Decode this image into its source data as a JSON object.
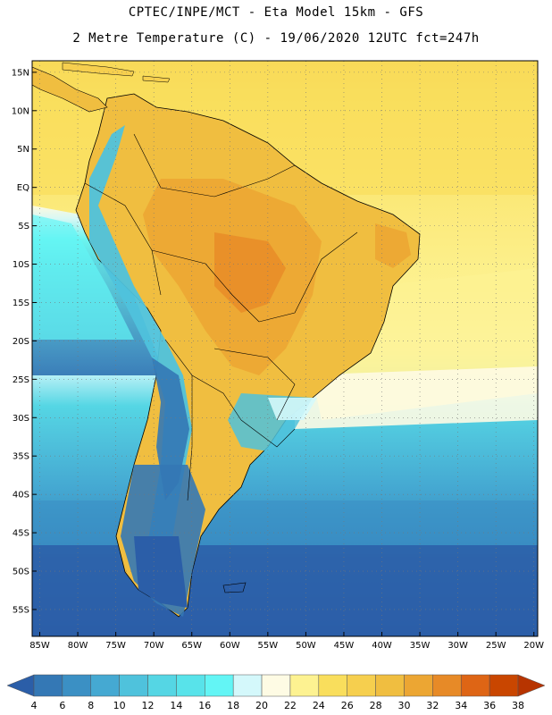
{
  "header": {
    "line1": "CPTEC/INPE/MCT -  Eta Model 15km - GFS",
    "line2": "2 Metre Temperature (C) - 19/06/2020 12UTC fct=247h"
  },
  "map": {
    "lon_range": [
      -86,
      -19.5
    ],
    "lat_range": [
      -58.5,
      16.5
    ],
    "lat_ticks": [
      {
        "value": 15,
        "label": "15N"
      },
      {
        "value": 10,
        "label": "10N"
      },
      {
        "value": 5,
        "label": "5N"
      },
      {
        "value": 0,
        "label": "EQ"
      },
      {
        "value": -5,
        "label": "5S"
      },
      {
        "value": -10,
        "label": "10S"
      },
      {
        "value": -15,
        "label": "15S"
      },
      {
        "value": -20,
        "label": "20S"
      },
      {
        "value": -25,
        "label": "25S"
      },
      {
        "value": -30,
        "label": "30S"
      },
      {
        "value": -35,
        "label": "35S"
      },
      {
        "value": -40,
        "label": "40S"
      },
      {
        "value": -45,
        "label": "45S"
      },
      {
        "value": -50,
        "label": "50S"
      },
      {
        "value": -55,
        "label": "55S"
      }
    ],
    "lon_ticks": [
      {
        "value": -85,
        "label": "85W"
      },
      {
        "value": -80,
        "label": "80W"
      },
      {
        "value": -75,
        "label": "75W"
      },
      {
        "value": -70,
        "label": "70W"
      },
      {
        "value": -65,
        "label": "65W"
      },
      {
        "value": -60,
        "label": "60W"
      },
      {
        "value": -55,
        "label": "55W"
      },
      {
        "value": -50,
        "label": "50W"
      },
      {
        "value": -45,
        "label": "45W"
      },
      {
        "value": -40,
        "label": "40W"
      },
      {
        "value": -35,
        "label": "35W"
      },
      {
        "value": -30,
        "label": "30W"
      },
      {
        "value": -25,
        "label": "25W"
      },
      {
        "value": -20,
        "label": "20W"
      }
    ]
  },
  "colorbar": {
    "labels": [
      "4",
      "6",
      "8",
      "10",
      "12",
      "14",
      "16",
      "18",
      "20",
      "22",
      "24",
      "26",
      "28",
      "30",
      "32",
      "34",
      "36",
      "38"
    ],
    "colors": [
      "#2b5ea8",
      "#3478b5",
      "#3b90c4",
      "#45a9d2",
      "#4fc2dc",
      "#55d6e4",
      "#58e3ea",
      "#63f5f5",
      "#d4f8fb",
      "#fefbe4",
      "#fdf291",
      "#f9de5c",
      "#f6cf4e",
      "#f0be40",
      "#eca633",
      "#e78a27",
      "#de6515",
      "#c94600",
      "#b73400"
    ]
  }
}
